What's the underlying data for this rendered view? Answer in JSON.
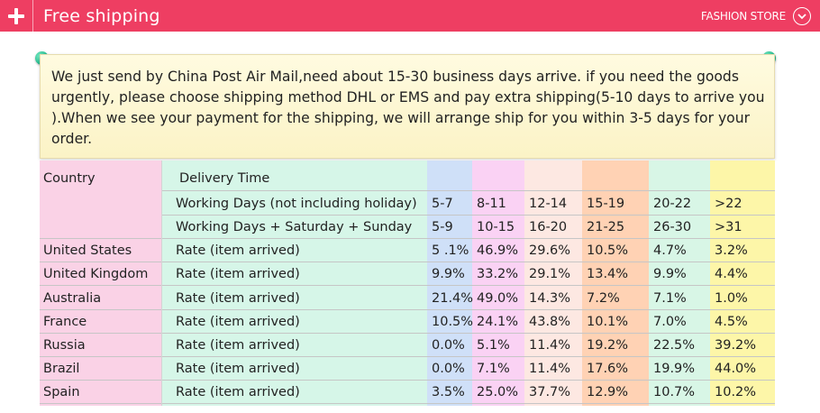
{
  "header": {
    "title": "Free shipping",
    "store_name": "FASHION STORE",
    "icons": [
      "plus-icon",
      "chevron-down-icon"
    ]
  },
  "colors": {
    "header_bg": "#ee3e62",
    "note_bg": "#fff8d6",
    "pin": "#1bbf8e",
    "country_col": "#fad2e6",
    "label_col": "#d6f6e8",
    "cols": [
      "#cfe0f8",
      "#fad2f4",
      "#fde8e2",
      "#ffd2b4",
      "#d8f6e6",
      "#fdf6a8"
    ]
  },
  "note": {
    "text": "We just send by China Post Air Mail,need about 15-30 business days arrive. if you need the goods urgently, please choose shipping method DHL or EMS and pay extra shipping(5-10 days to arrive you ).When we see your payment for the shipping, we will arrange ship for you within 3-5 days for your order."
  },
  "table": {
    "country_header": "Country",
    "delivery_header": "Delivery Time",
    "working_label": "Working Days (not including holiday)",
    "working_values": [
      "5-7",
      "8-11",
      "12-14",
      "15-19",
      "20-22",
      ">22"
    ],
    "total_label": "Working Days + Saturday + Sunday",
    "total_values": [
      "5-9",
      "10-15",
      "16-20",
      "21-25",
      "26-30",
      ">31"
    ],
    "rows": [
      {
        "country": "United States",
        "label": "Rate (item arrived)",
        "values": [
          "5 .1%",
          "46.9%",
          "29.6%",
          "10.5%",
          "4.7%",
          "3.2%"
        ]
      },
      {
        "country": "United Kingdom",
        "label": "Rate (item arrived)",
        "values": [
          "9.9%",
          "33.2%",
          "29.1%",
          "13.4%",
          "9.9%",
          "4.4%"
        ]
      },
      {
        "country": "Australia",
        "label": "Rate (item arrived)",
        "values": [
          "21.4%",
          "49.0%",
          "14.3%",
          "7.2%",
          "7.1%",
          "1.0%"
        ]
      },
      {
        "country": "France",
        "label": "Rate (item arrived)",
        "values": [
          "10.5%",
          "24.1%",
          "43.8%",
          "10.1%",
          "7.0%",
          "4.5%"
        ]
      },
      {
        "country": "Russia",
        "label": "Rate (item arrived)",
        "values": [
          "0.0%",
          "5.1%",
          "11.4%",
          "19.2%",
          "22.5%",
          "39.2%"
        ]
      },
      {
        "country": "Brazil",
        "label": "Rate (item arrived)",
        "values": [
          "0.0%",
          "7.1%",
          "11.4%",
          "17.6%",
          "19.9%",
          "44.0%"
        ]
      },
      {
        "country": "Spain",
        "label": "Rate (item arrived)",
        "values": [
          "3.5%",
          "25.0%",
          "37.7%",
          "12.9%",
          "10.7%",
          "10.2%"
        ]
      }
    ]
  }
}
